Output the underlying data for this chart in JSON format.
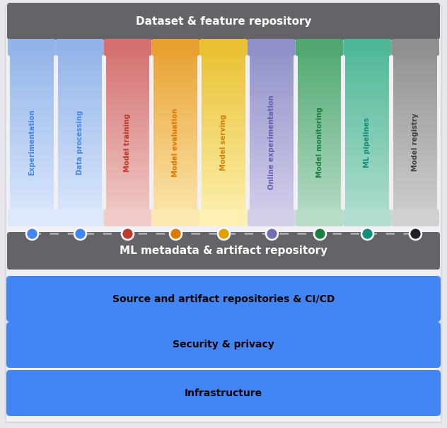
{
  "background_color": "#e8e8ec",
  "top_bar": {
    "text": "Dataset & feature repository",
    "color": "#636368",
    "text_color": "#ffffff",
    "fontsize": 11,
    "fontweight": "bold"
  },
  "middle_bar": {
    "text": "ML metadata & artifact repository",
    "color": "#636368",
    "text_color": "#ffffff",
    "fontsize": 11,
    "fontweight": "bold"
  },
  "bottom_bars": [
    {
      "text": "Source and artifact repositories & CI/CD",
      "color": "#4285f4",
      "text_color": "#000000",
      "fontsize": 10,
      "fontweight": "bold"
    },
    {
      "text": "Security & privacy",
      "color": "#4285f4",
      "text_color": "#000000",
      "fontsize": 10,
      "fontweight": "bold"
    },
    {
      "text": "Infrastructure",
      "color": "#4285f4",
      "text_color": "#000000",
      "fontsize": 10,
      "fontweight": "bold"
    }
  ],
  "columns": [
    {
      "label": "Experimentation",
      "color_top": "#92b4e8",
      "color_bottom": "#dce8fc",
      "text_color": "#4285f4",
      "dot_color": "#4285f4"
    },
    {
      "label": "Data processing",
      "color_top": "#92b4e8",
      "color_bottom": "#dce8fc",
      "text_color": "#4285f4",
      "dot_color": "#4285f4"
    },
    {
      "label": "Model training",
      "color_top": "#d47070",
      "color_bottom": "#f0ccc8",
      "text_color": "#c0392b",
      "dot_color": "#c0392b"
    },
    {
      "label": "Model evaluation",
      "color_top": "#e8a030",
      "color_bottom": "#fce8b0",
      "text_color": "#e07800",
      "dot_color": "#e07800"
    },
    {
      "label": "Model serving",
      "color_top": "#e8c030",
      "color_bottom": "#fdf0b0",
      "text_color": "#d08000",
      "dot_color": "#e0a000"
    },
    {
      "label": "Online experimentation",
      "color_top": "#9090c8",
      "color_bottom": "#d4d0ec",
      "text_color": "#6060b0",
      "dot_color": "#7070b8"
    },
    {
      "label": "Model monitoring",
      "color_top": "#50a870",
      "color_bottom": "#b8dcc8",
      "text_color": "#1a8040",
      "dot_color": "#1a8040"
    },
    {
      "label": "ML pipelines",
      "color_top": "#50b898",
      "color_bottom": "#b0ddd0",
      "text_color": "#10907a",
      "dot_color": "#10907a"
    },
    {
      "label": "Model registry",
      "color_top": "#909090",
      "color_bottom": "#d0d0d0",
      "text_color": "#404040",
      "dot_color": "#202028"
    }
  ]
}
